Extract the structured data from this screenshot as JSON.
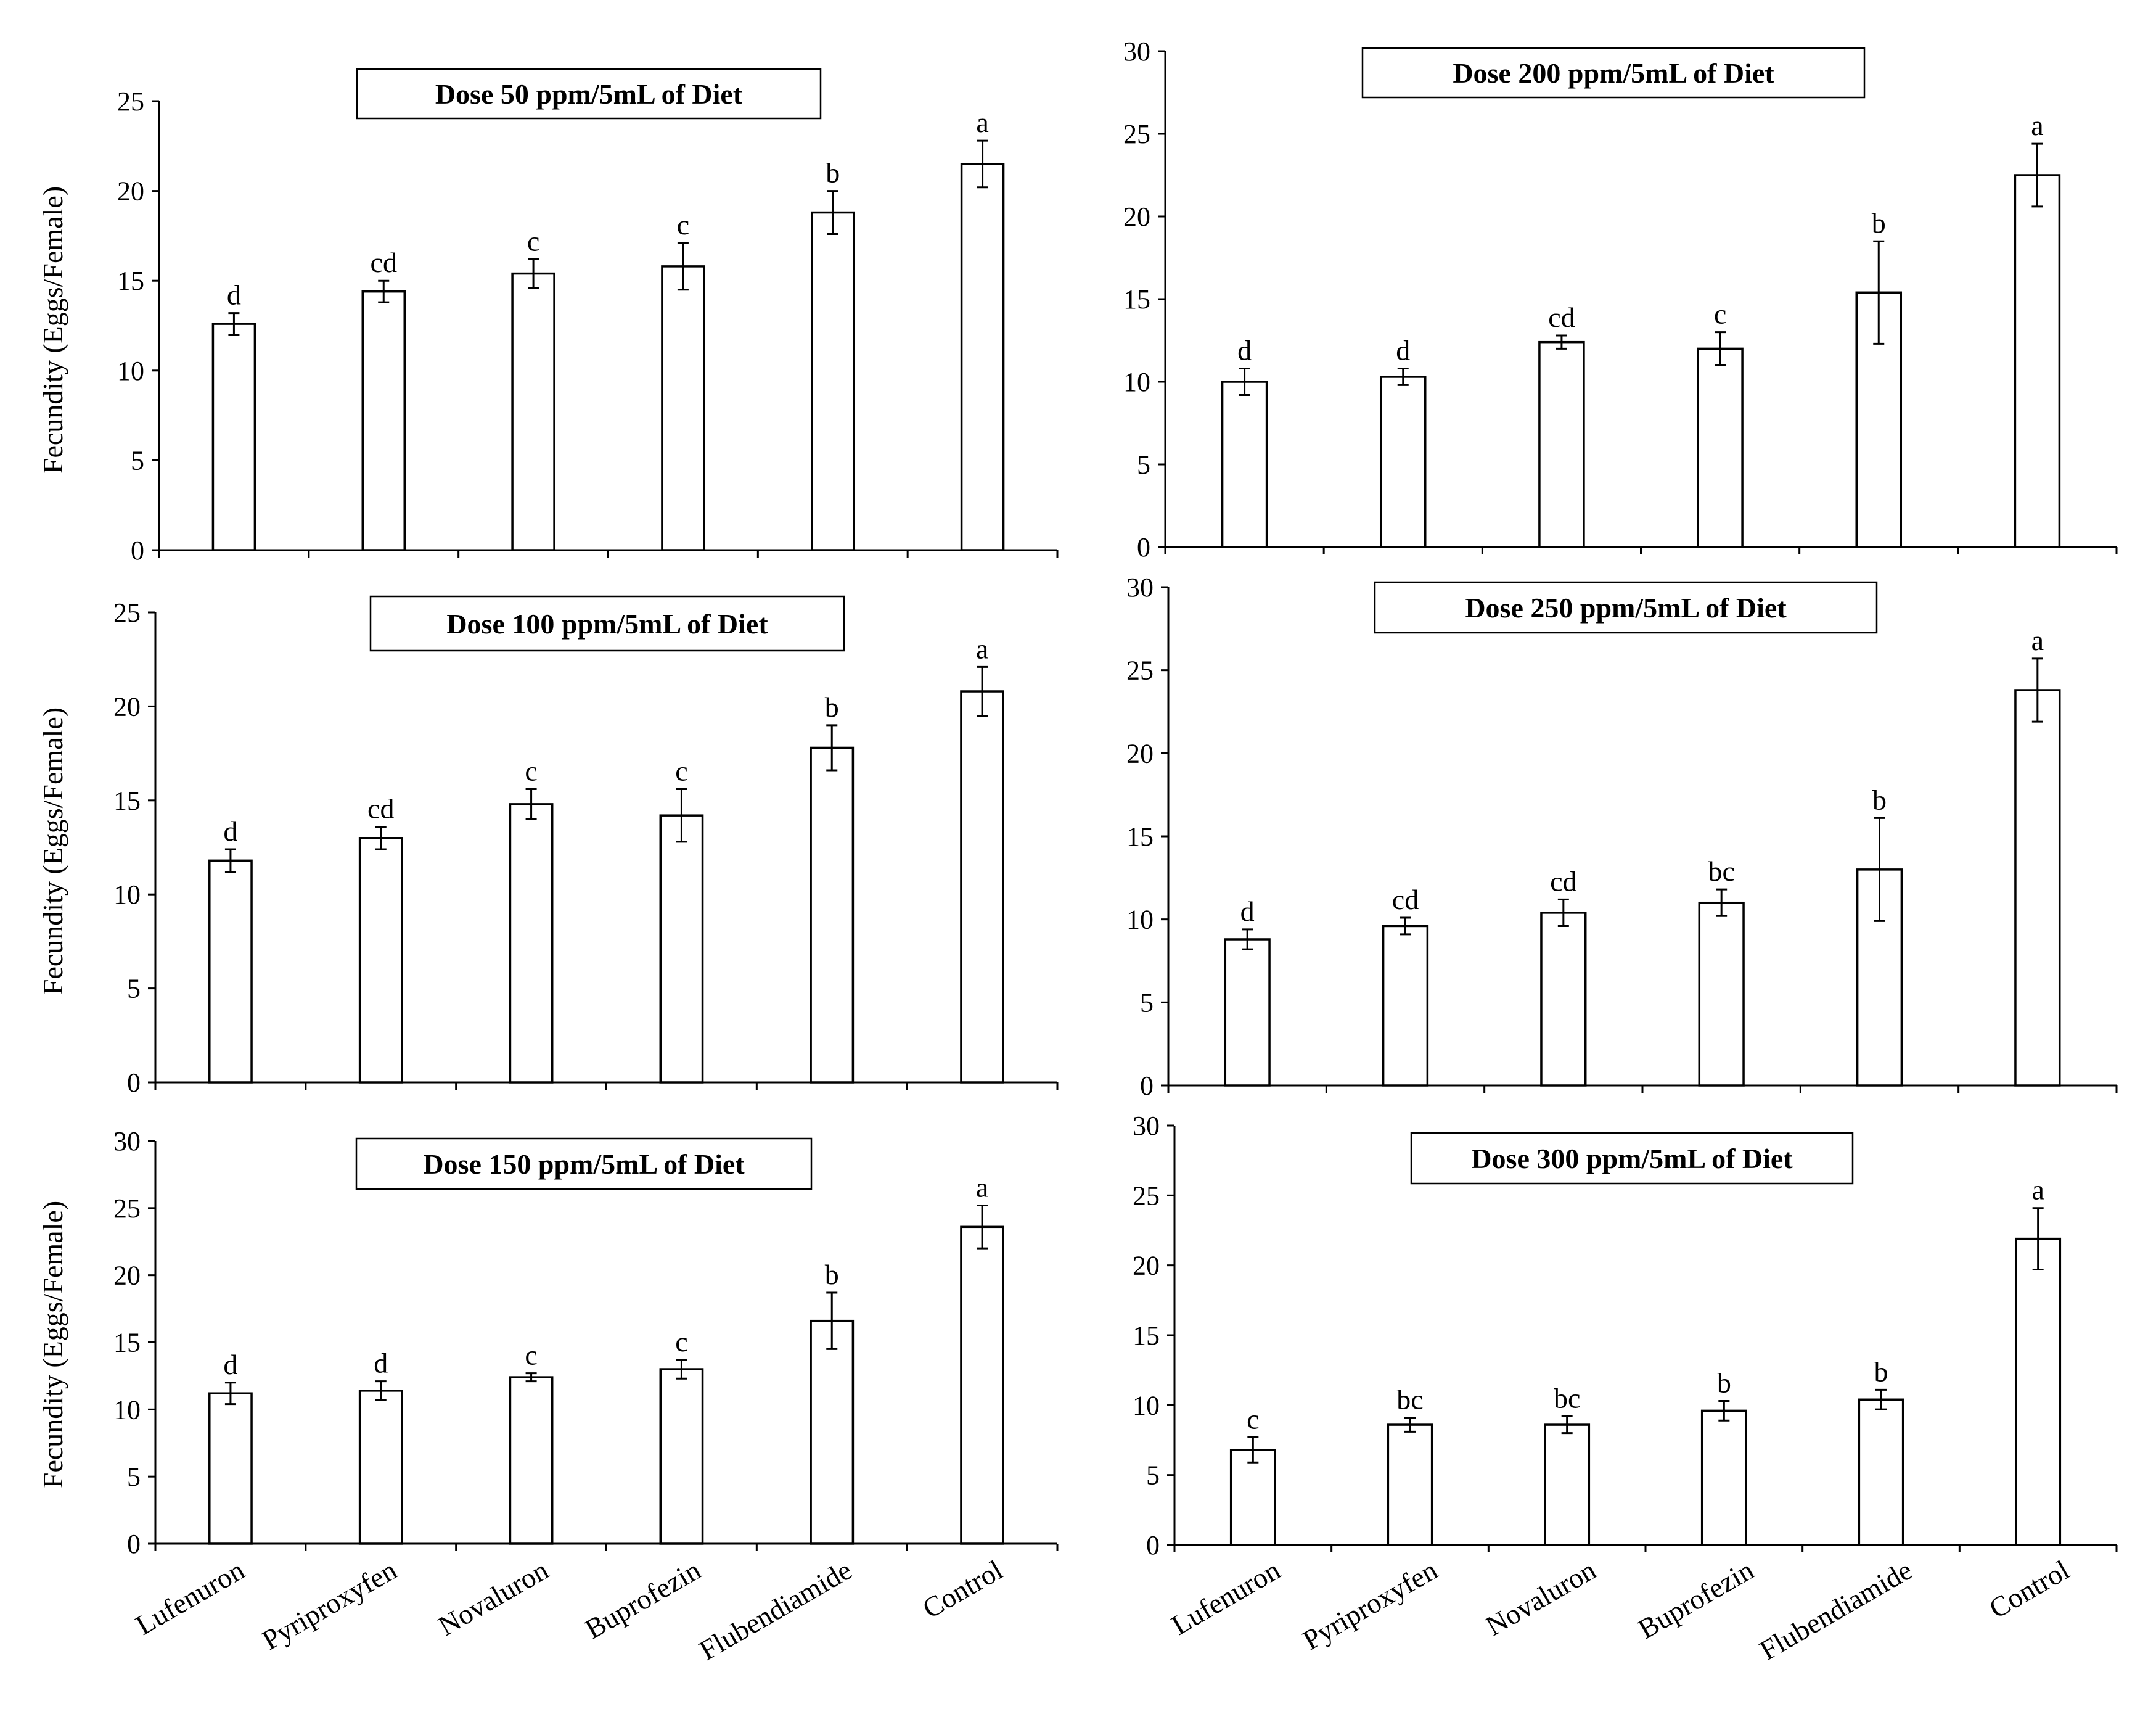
{
  "figure": {
    "categories": [
      "Lufenuron",
      "Pyriproxyfen",
      "Novaluron",
      "Buprofezin",
      "Flubendiamide",
      "Control"
    ],
    "ylabel": "Fecundity (Eggs/Female)"
  },
  "chart_data": [
    {
      "type": "bar",
      "title": "Dose 50 ppm/5mL of Diet",
      "categories": [
        "Lufenuron",
        "Pyriproxyfen",
        "Novaluron",
        "Buprofezin",
        "Flubendiamide",
        "Control"
      ],
      "values": [
        12.6,
        14.4,
        15.4,
        15.8,
        18.8,
        21.5
      ],
      "errors": [
        0.6,
        0.6,
        0.8,
        1.3,
        1.2,
        1.3
      ],
      "letters": [
        "d",
        "cd",
        "c",
        "c",
        "b",
        "a"
      ],
      "ylabel": "Fecundity (Eggs/Female)",
      "ylim": [
        0,
        25
      ],
      "yticks": [
        0,
        5,
        10,
        15,
        20,
        25
      ]
    },
    {
      "type": "bar",
      "title": "Dose 200 ppm/5mL of Diet",
      "categories": [
        "Lufenuron",
        "Pyriproxyfen",
        "Novaluron",
        "Buprofezin",
        "Flubendiamide",
        "Control"
      ],
      "values": [
        10.0,
        10.3,
        12.4,
        12.0,
        15.4,
        22.5
      ],
      "errors": [
        0.8,
        0.5,
        0.4,
        1.0,
        3.1,
        1.9
      ],
      "letters": [
        "d",
        "d",
        "cd",
        "c",
        "b",
        "a"
      ],
      "ylabel": "",
      "ylim": [
        0,
        30
      ],
      "yticks": [
        0,
        5,
        10,
        15,
        20,
        25,
        30
      ]
    },
    {
      "type": "bar",
      "title": "Dose 100 ppm/5mL of Diet",
      "categories": [
        "Lufenuron",
        "Pyriproxyfen",
        "Novaluron",
        "Buprofezin",
        "Flubendiamide",
        "Control"
      ],
      "values": [
        11.8,
        13.0,
        14.8,
        14.2,
        17.8,
        20.8
      ],
      "errors": [
        0.6,
        0.6,
        0.8,
        1.4,
        1.2,
        1.3
      ],
      "letters": [
        "d",
        "cd",
        "c",
        "c",
        "b",
        "a"
      ],
      "ylabel": "Fecundity (Eggs/Female)",
      "ylim": [
        0,
        25
      ],
      "yticks": [
        0,
        5,
        10,
        15,
        20,
        25
      ]
    },
    {
      "type": "bar",
      "title": "Dose 250 ppm/5mL of Diet",
      "categories": [
        "Lufenuron",
        "Pyriproxyfen",
        "Novaluron",
        "Buprofezin",
        "Flubendiamide",
        "Control"
      ],
      "values": [
        8.8,
        9.6,
        10.4,
        11.0,
        13.0,
        23.8
      ],
      "errors": [
        0.6,
        0.5,
        0.8,
        0.8,
        3.1,
        1.9
      ],
      "letters": [
        "d",
        "cd",
        "cd",
        "bc",
        "b",
        "a"
      ],
      "ylabel": "",
      "ylim": [
        0,
        30
      ],
      "yticks": [
        0,
        5,
        10,
        15,
        20,
        25,
        30
      ]
    },
    {
      "type": "bar",
      "title": "Dose 150 ppm/5mL of Diet",
      "categories": [
        "Lufenuron",
        "Pyriproxyfen",
        "Novaluron",
        "Buprofezin",
        "Flubendiamide",
        "Control"
      ],
      "values": [
        11.2,
        11.4,
        12.4,
        13.0,
        16.6,
        23.6
      ],
      "errors": [
        0.8,
        0.7,
        0.3,
        0.7,
        2.1,
        1.6
      ],
      "letters": [
        "d",
        "d",
        "c",
        "c",
        "b",
        "a"
      ],
      "ylabel": "Fecundity (Eggs/Female)",
      "ylim": [
        0,
        30
      ],
      "yticks": [
        0,
        5,
        10,
        15,
        20,
        25,
        30
      ]
    },
    {
      "type": "bar",
      "title": "Dose 300 ppm/5mL of Diet",
      "categories": [
        "Lufenuron",
        "Pyriproxyfen",
        "Novaluron",
        "Buprofezin",
        "Flubendiamide",
        "Control"
      ],
      "values": [
        6.8,
        8.6,
        8.6,
        9.6,
        10.4,
        21.9
      ],
      "errors": [
        0.9,
        0.5,
        0.6,
        0.7,
        0.7,
        2.2
      ],
      "letters": [
        "c",
        "bc",
        "bc",
        "b",
        "b",
        "a"
      ],
      "ylabel": "",
      "ylim": [
        0,
        30
      ],
      "yticks": [
        0,
        5,
        10,
        15,
        20,
        25,
        30
      ]
    }
  ]
}
